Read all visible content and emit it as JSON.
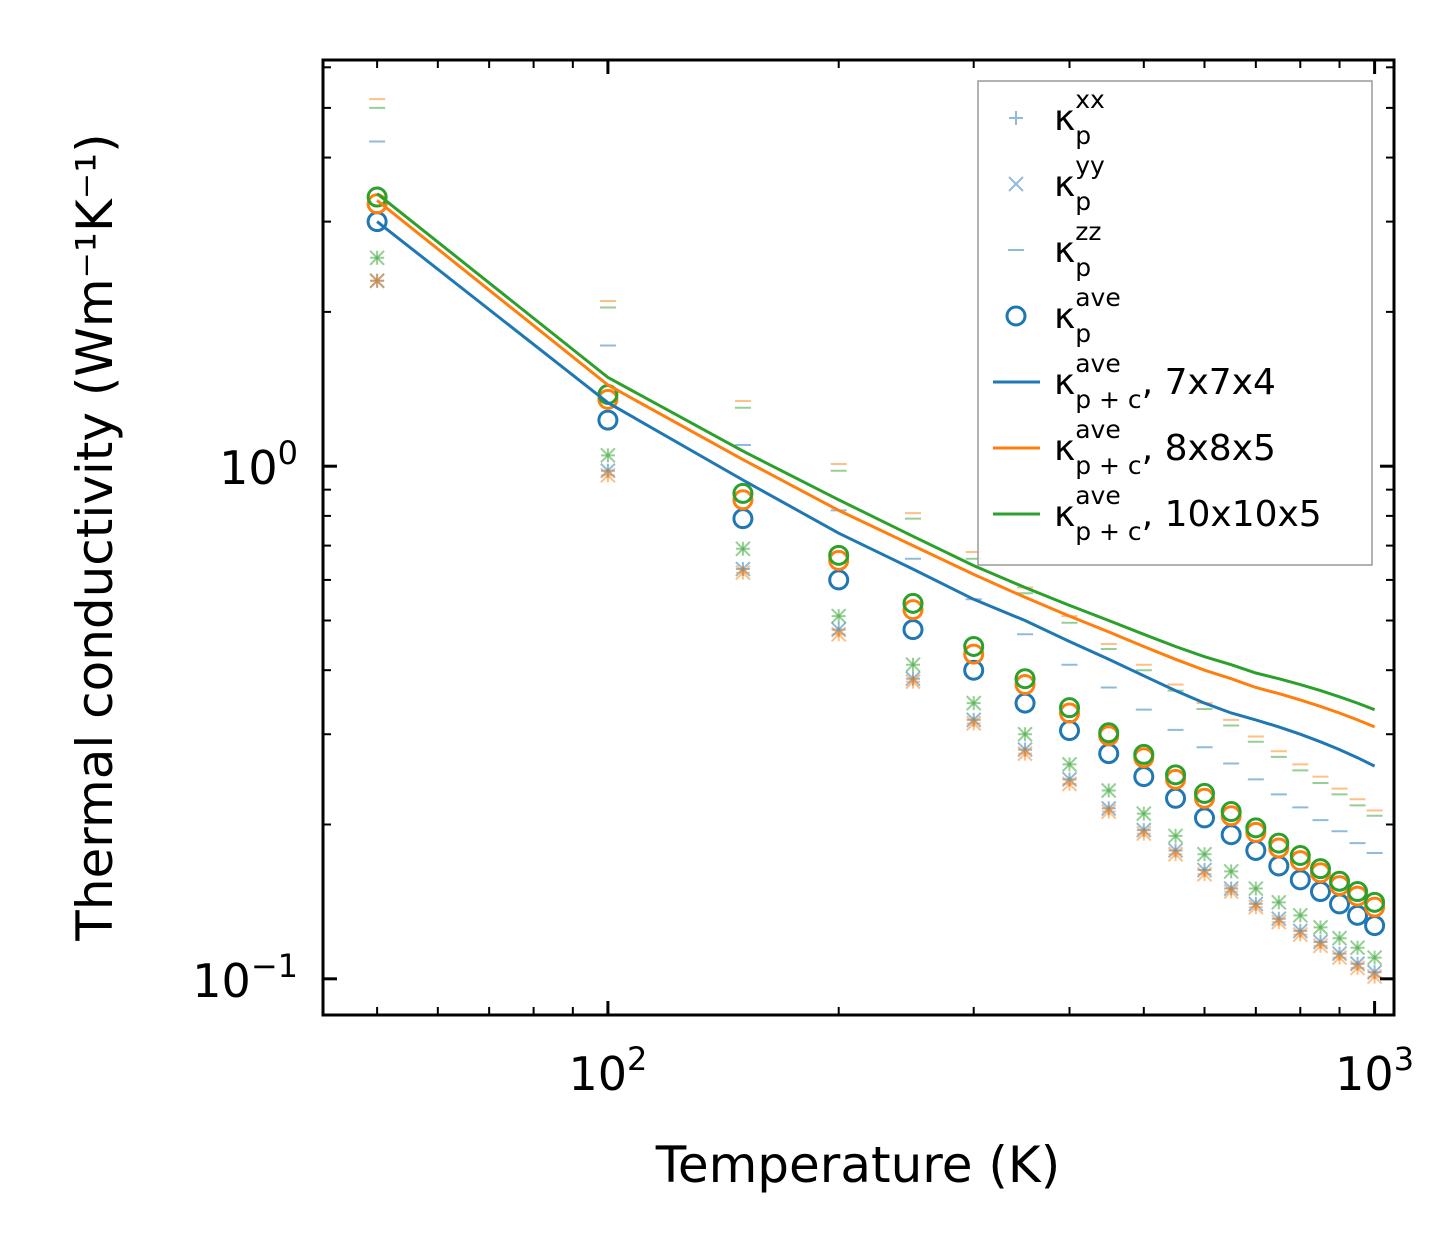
{
  "chart_data": {
    "type": "scatter",
    "xscale": "log",
    "yscale": "log",
    "xlabel": "Temperature (K)",
    "ylabel": "Thermal conductivity (Wm⁻¹K⁻¹)",
    "xlim": [
      42.5,
      1060
    ],
    "ylim": [
      0.085,
      6.2
    ],
    "x_tick_labels": [
      {
        "base": "10",
        "exp": "2",
        "value": 100
      },
      {
        "base": "10",
        "exp": "3",
        "value": 1000
      }
    ],
    "y_tick_labels": [
      {
        "base": "10",
        "exp": "0",
        "value": 1
      },
      {
        "base": "10",
        "exp": "−1",
        "value": 0.1
      }
    ],
    "x": [
      50,
      100,
      150,
      200,
      250,
      300,
      350,
      400,
      450,
      500,
      550,
      600,
      650,
      700,
      750,
      800,
      850,
      900,
      950,
      1000
    ],
    "grids": [
      {
        "name": "7x7x4",
        "color": "#1f77b4",
        "kxx": [
          2.3,
          0.98,
          0.63,
          0.48,
          0.385,
          0.32,
          0.28,
          0.245,
          0.215,
          0.195,
          0.178,
          0.163,
          0.15,
          0.14,
          0.131,
          0.124,
          0.118,
          0.112,
          0.107,
          0.103
        ],
        "kyy": [
          2.3,
          0.98,
          0.63,
          0.48,
          0.385,
          0.32,
          0.28,
          0.245,
          0.215,
          0.195,
          0.178,
          0.163,
          0.15,
          0.14,
          0.131,
          0.124,
          0.118,
          0.112,
          0.107,
          0.103
        ],
        "kzz": [
          4.3,
          1.72,
          1.1,
          0.82,
          0.66,
          0.55,
          0.47,
          0.41,
          0.37,
          0.335,
          0.306,
          0.283,
          0.263,
          0.245,
          0.229,
          0.216,
          0.204,
          0.194,
          0.184,
          0.176
        ],
        "kave": [
          3.0,
          1.23,
          0.79,
          0.6,
          0.48,
          0.4,
          0.345,
          0.305,
          0.275,
          0.248,
          0.225,
          0.206,
          0.191,
          0.178,
          0.166,
          0.156,
          0.148,
          0.14,
          0.133,
          0.127
        ],
        "kpc": [
          3.0,
          1.33,
          0.94,
          0.74,
          0.63,
          0.55,
          0.5,
          0.455,
          0.42,
          0.39,
          0.365,
          0.345,
          0.33,
          0.32,
          0.31,
          0.3,
          0.29,
          0.28,
          0.27,
          0.26
        ]
      },
      {
        "name": "8x8x5",
        "color": "#ff7f0e",
        "kxx": [
          2.3,
          0.96,
          0.62,
          0.47,
          0.38,
          0.315,
          0.275,
          0.24,
          0.212,
          0.192,
          0.175,
          0.16,
          0.148,
          0.138,
          0.129,
          0.122,
          0.116,
          0.11,
          0.105,
          0.101
        ],
        "kyy": [
          2.3,
          0.96,
          0.62,
          0.47,
          0.38,
          0.315,
          0.275,
          0.24,
          0.212,
          0.192,
          0.175,
          0.16,
          0.148,
          0.138,
          0.129,
          0.122,
          0.116,
          0.11,
          0.105,
          0.101
        ],
        "kzz": [
          5.2,
          2.1,
          1.34,
          1.01,
          0.81,
          0.68,
          0.58,
          0.51,
          0.45,
          0.41,
          0.375,
          0.345,
          0.32,
          0.297,
          0.278,
          0.262,
          0.248,
          0.235,
          0.224,
          0.213
        ],
        "kave": [
          3.25,
          1.35,
          0.86,
          0.655,
          0.525,
          0.43,
          0.375,
          0.33,
          0.298,
          0.27,
          0.245,
          0.225,
          0.208,
          0.193,
          0.18,
          0.17,
          0.161,
          0.152,
          0.145,
          0.138
        ],
        "kpc": [
          3.3,
          1.44,
          1.03,
          0.82,
          0.7,
          0.615,
          0.555,
          0.51,
          0.475,
          0.445,
          0.42,
          0.4,
          0.385,
          0.37,
          0.36,
          0.35,
          0.34,
          0.33,
          0.32,
          0.31
        ]
      },
      {
        "name": "10x10x5",
        "color": "#2ca02c",
        "kxx": [
          2.55,
          1.05,
          0.69,
          0.51,
          0.41,
          0.345,
          0.3,
          0.262,
          0.233,
          0.21,
          0.19,
          0.175,
          0.162,
          0.15,
          0.141,
          0.133,
          0.126,
          0.12,
          0.115,
          0.11
        ],
        "kyy": [
          2.55,
          1.05,
          0.69,
          0.51,
          0.41,
          0.345,
          0.3,
          0.262,
          0.233,
          0.21,
          0.19,
          0.175,
          0.162,
          0.15,
          0.141,
          0.133,
          0.126,
          0.12,
          0.115,
          0.11
        ],
        "kzz": [
          5.0,
          2.04,
          1.3,
          0.98,
          0.79,
          0.66,
          0.565,
          0.495,
          0.44,
          0.4,
          0.365,
          0.336,
          0.312,
          0.29,
          0.271,
          0.255,
          0.241,
          0.229,
          0.218,
          0.208
        ],
        "kave": [
          3.35,
          1.38,
          0.885,
          0.67,
          0.54,
          0.445,
          0.385,
          0.338,
          0.302,
          0.274,
          0.25,
          0.23,
          0.212,
          0.197,
          0.184,
          0.174,
          0.164,
          0.155,
          0.148,
          0.141
        ],
        "kpc": [
          3.4,
          1.49,
          1.07,
          0.86,
          0.73,
          0.64,
          0.58,
          0.535,
          0.5,
          0.47,
          0.445,
          0.425,
          0.41,
          0.395,
          0.385,
          0.375,
          0.365,
          0.355,
          0.345,
          0.335
        ]
      }
    ],
    "legend": {
      "placement": "top-right",
      "entries": [
        {
          "marker": "plus",
          "color": "#1f77b4",
          "label": "κ",
          "sub": "p",
          "sup": "xx",
          "suffix": ""
        },
        {
          "marker": "x",
          "color": "#1f77b4",
          "label": "κ",
          "sub": "p",
          "sup": "yy",
          "suffix": ""
        },
        {
          "marker": "dash",
          "color": "#1f77b4",
          "label": "κ",
          "sub": "p",
          "sup": "zz",
          "suffix": ""
        },
        {
          "marker": "circle",
          "color": "#1f77b4",
          "label": "κ",
          "sub": "p",
          "sup": "ave",
          "suffix": ""
        },
        {
          "marker": "line",
          "color": "#1f77b4",
          "label": "κ",
          "sub": "p + c",
          "sup": "ave",
          "suffix": ", 7x7x4"
        },
        {
          "marker": "line",
          "color": "#ff7f0e",
          "label": "κ",
          "sub": "p + c",
          "sup": "ave",
          "suffix": ", 8x8x5"
        },
        {
          "marker": "line",
          "color": "#2ca02c",
          "label": "κ",
          "sub": "p + c",
          "sup": "ave",
          "suffix": ", 10x10x5"
        }
      ]
    }
  }
}
